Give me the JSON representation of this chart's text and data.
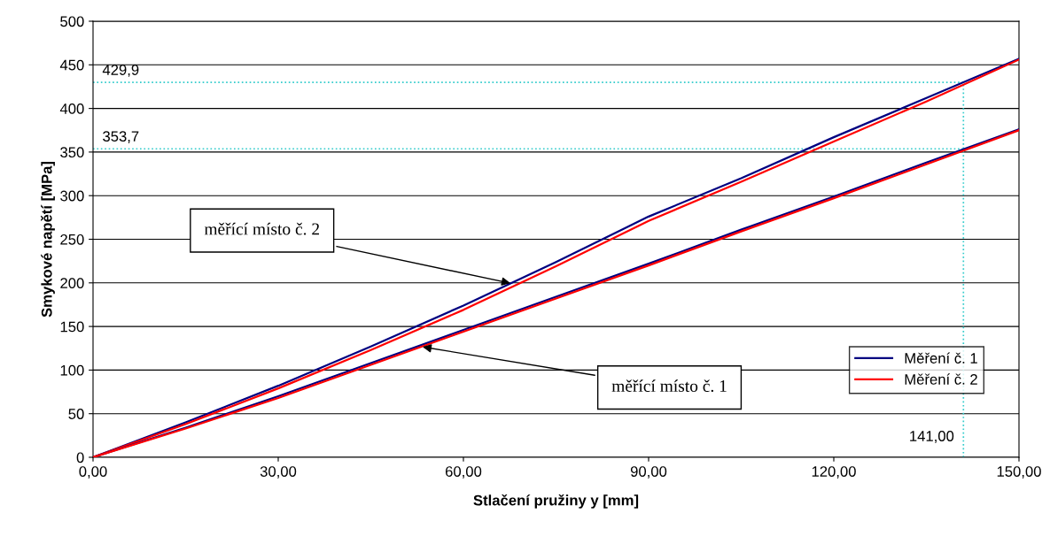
{
  "chart_data": {
    "type": "line",
    "xlabel": "Stlačení pružiny y [mm]",
    "ylabel": "Smykové napětí [MPa]",
    "xlim": [
      0,
      150
    ],
    "ylim": [
      0,
      500
    ],
    "xticks": [
      {
        "value": 0,
        "label": "0,00"
      },
      {
        "value": 30,
        "label": "30,00"
      },
      {
        "value": 60,
        "label": "60,00"
      },
      {
        "value": 90,
        "label": "90,00"
      },
      {
        "value": 120,
        "label": "120,00"
      },
      {
        "value": 150,
        "label": "150,00"
      }
    ],
    "yticks": [
      0,
      50,
      100,
      150,
      200,
      250,
      300,
      350,
      400,
      450,
      500
    ],
    "grid": "y",
    "legend": "bottom right",
    "marker": "none",
    "line_style": "solid",
    "series": [
      {
        "name": "Měření č. 1",
        "color": "#000080",
        "x": [
          0,
          15,
          30,
          45,
          60,
          75,
          90,
          105,
          120,
          135,
          150
        ],
        "values": [
          0,
          40,
          82,
          127,
          174,
          224,
          276,
          320,
          367,
          412,
          457
        ]
      },
      {
        "name": "Měření č. 2",
        "color": "#ff0000",
        "x": [
          0,
          15,
          30,
          45,
          60,
          75,
          90,
          105,
          120,
          135,
          150
        ],
        "values": [
          0,
          38,
          79,
          123,
          169,
          219,
          271,
          316,
          362,
          408,
          456
        ]
      },
      {
        "color": "#000080",
        "x": [
          0,
          15,
          30,
          45,
          60,
          75,
          90,
          105,
          120,
          135,
          150
        ],
        "values": [
          0,
          34,
          70,
          108,
          146,
          184,
          222,
          261,
          299,
          338,
          376
        ]
      },
      {
        "color": "#ff0000",
        "x": [
          0,
          15,
          30,
          45,
          60,
          75,
          90,
          105,
          120,
          135,
          150
        ],
        "values": [
          0,
          33,
          68,
          106,
          144,
          182,
          220,
          259,
          297,
          336,
          375
        ]
      }
    ],
    "ref_lines": [
      {
        "axis": "y",
        "value": 429.9,
        "label": "429,9",
        "color": "#33cccc",
        "line_style": "dotted"
      },
      {
        "axis": "y",
        "value": 353.7,
        "label": "353,7",
        "color": "#33cccc",
        "line_style": "dotted"
      },
      {
        "axis": "x",
        "value": 141,
        "label": "141,00",
        "color": "#33cccc",
        "line_style": "dotted"
      }
    ],
    "annotations": [
      {
        "text": "měřící místo č. 2",
        "x": 68,
        "y": 199
      },
      {
        "text": "měřící místo č. 1",
        "x": 53,
        "y": 127
      }
    ]
  }
}
